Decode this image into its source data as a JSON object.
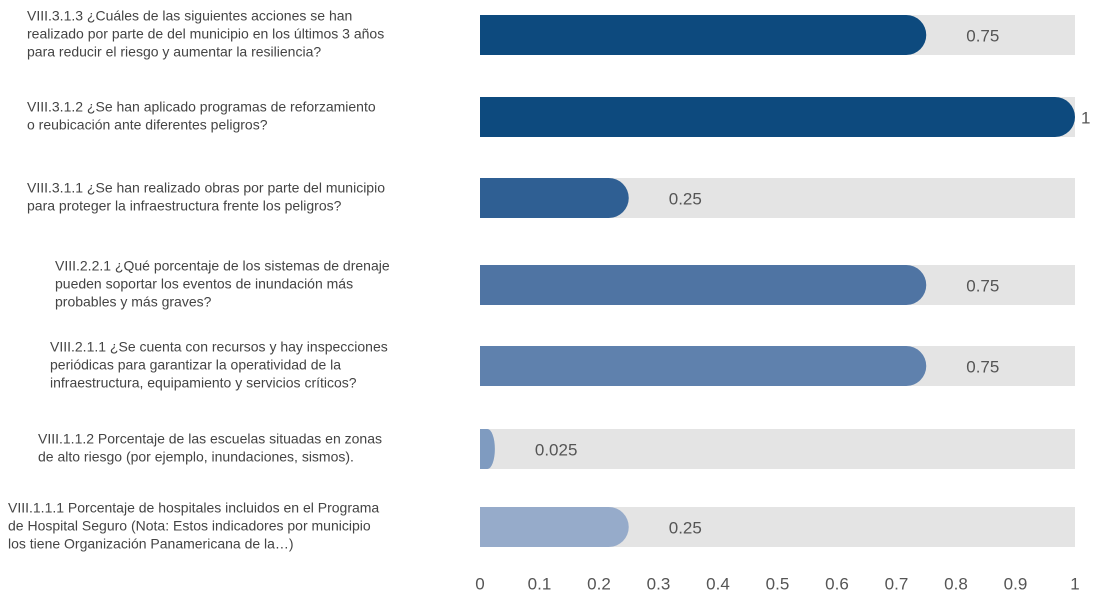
{
  "chart_data": {
    "type": "bar",
    "orientation": "horizontal",
    "categories": [
      [
        "VIII.3.1.3 ¿Cuáles de las siguientes acciones se han",
        "realizado por parte de del municipio en los últimos 3 años",
        "para reducir el riesgo y aumentar la resiliencia?"
      ],
      [
        "VIII.3.1.2 ¿Se han aplicado programas de reforzamiento",
        "o reubicación ante diferentes peligros?"
      ],
      [
        "VIII.3.1.1 ¿Se han realizado obras por parte del municipio",
        "para proteger la infraestructura frente los peligros?"
      ],
      [
        "VIII.2.2.1 ¿Qué porcentaje de los sistemas de drenaje",
        "pueden soportar los eventos de inundación más",
        "probables y más  graves?"
      ],
      [
        "VIII.2.1.1 ¿Se cuenta con recursos y hay inspecciones",
        "periódicas para garantizar la operatividad de la",
        "infraestructura, equipamiento y servicios críticos?"
      ],
      [
        "VIII.1.1.2 Porcentaje de las escuelas situadas en zonas",
        "de alto riesgo (por ejemplo, inundaciones, sismos)."
      ],
      [
        "VIII.1.1.1 Porcentaje de hospitales incluidos en el Programa",
        "de Hospital Seguro (Nota: Estos indicadores por municipio",
        "los tiene Organización Panamericana de la…)"
      ]
    ],
    "values": [
      0.75,
      1,
      0.25,
      0.75,
      0.75,
      0.025,
      0.25
    ],
    "colors": [
      "#0d4a7e",
      "#0d4a7e",
      "#2f5f93",
      "#4f74a3",
      "#5f81ad",
      "#7f9bc0",
      "#96abca"
    ],
    "track_color": "#e4e4e4",
    "xlim": [
      0,
      1
    ],
    "xticks": [
      0,
      0.1,
      0.2,
      0.3,
      0.4,
      0.5,
      0.6,
      0.7,
      0.8,
      0.9,
      1
    ]
  }
}
